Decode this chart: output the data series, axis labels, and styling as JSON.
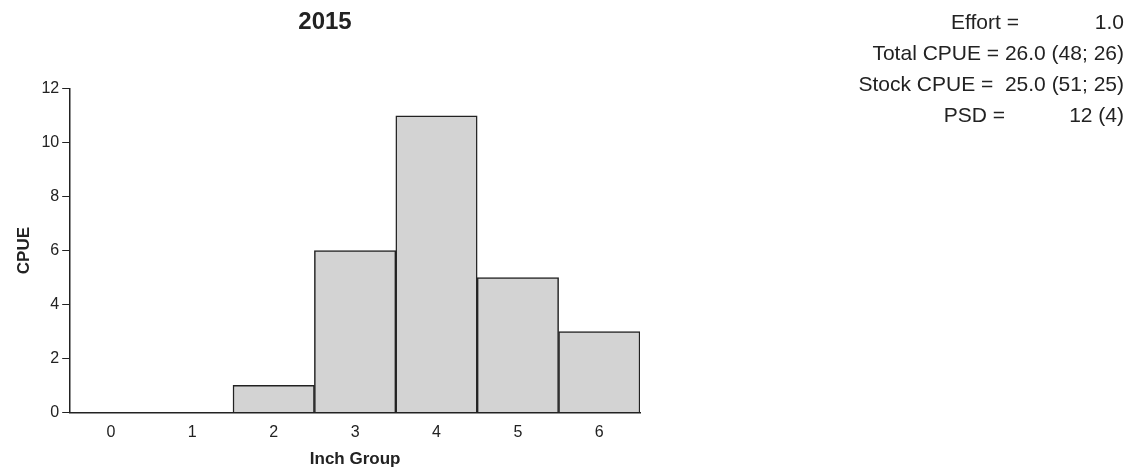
{
  "chart_data": {
    "type": "bar",
    "title": "2015",
    "xlabel": "Inch Group",
    "ylabel": "CPUE",
    "categories": [
      "0",
      "1",
      "2",
      "3",
      "4",
      "5",
      "6"
    ],
    "values": [
      0,
      0,
      1,
      6,
      11,
      5,
      3
    ],
    "color": "#d3d3d3",
    "ylim": [
      0,
      12
    ],
    "yticks": [
      0,
      2,
      4,
      6,
      8,
      10,
      12
    ],
    "grid": false,
    "legend": false,
    "annotations": [
      "Effort =             1.0",
      "Total CPUE = 26.0 (48; 26)",
      "Stock CPUE =  25.0 (51; 25)",
      "PSD =           12 (4)"
    ]
  }
}
